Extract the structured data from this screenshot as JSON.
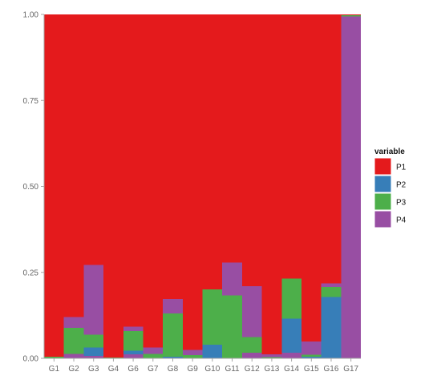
{
  "chart_data": {
    "type": "bar",
    "stacked": true,
    "categories": [
      "G1",
      "G2",
      "G3",
      "G4",
      "G6",
      "G7",
      "G8",
      "G9",
      "G10",
      "G11",
      "G12",
      "G13",
      "G14",
      "G15",
      "G16",
      "G17"
    ],
    "series": [
      {
        "name": "P4",
        "color": "#984ea3",
        "values": [
          0.0,
          0.013,
          0.007,
          0.0,
          0.012,
          0.0,
          0.0,
          0.0,
          0.0,
          0.0,
          0.016,
          0.0,
          0.016,
          0.0,
          0.0,
          0.994
        ]
      },
      {
        "name": "P2",
        "color": "#377eb8",
        "values": [
          0.0,
          0.0,
          0.025,
          0.0,
          0.01,
          0.0,
          0.005,
          0.0,
          0.04,
          0.0,
          0.0,
          0.0,
          0.099,
          0.005,
          0.178,
          0.0
        ]
      },
      {
        "name": "P3",
        "color": "#4daf4a",
        "values": [
          0.005,
          0.075,
          0.037,
          0.002,
          0.057,
          0.013,
          0.125,
          0.009,
          0.16,
          0.183,
          0.046,
          0.004,
          0.117,
          0.006,
          0.03,
          0.004
        ]
      },
      {
        "name": "P4",
        "color": "#984ea3",
        "values": [
          0.0,
          0.032,
          0.203,
          0.0,
          0.013,
          0.018,
          0.043,
          0.016,
          0.0,
          0.095,
          0.148,
          0.008,
          0.0,
          0.038,
          0.01,
          0.0
        ]
      },
      {
        "name": "P1",
        "color": "#e41a1c",
        "values": [
          0.995,
          0.88,
          0.728,
          0.998,
          0.908,
          0.969,
          0.827,
          0.975,
          0.8,
          0.722,
          0.79,
          0.988,
          0.768,
          0.951,
          0.782,
          0.002
        ]
      }
    ],
    "ylim": [
      0,
      1
    ],
    "yticks": [
      {
        "value": 0.0,
        "label": "0.00"
      },
      {
        "value": 0.25,
        "label": "0.25"
      },
      {
        "value": 0.5,
        "label": "0.50"
      },
      {
        "value": 0.75,
        "label": "0.75"
      },
      {
        "value": 1.0,
        "label": "1.00"
      }
    ],
    "xlabel": "",
    "ylabel": "",
    "grid": false,
    "legend": {
      "title": "variable",
      "position": "right",
      "items": [
        {
          "label": "P1",
          "color": "#e41a1c"
        },
        {
          "label": "P2",
          "color": "#377eb8"
        },
        {
          "label": "P3",
          "color": "#4daf4a"
        },
        {
          "label": "P4",
          "color": "#984ea3"
        }
      ]
    },
    "background": "#ffffff",
    "axis_line_color": "#a6a6a6"
  }
}
